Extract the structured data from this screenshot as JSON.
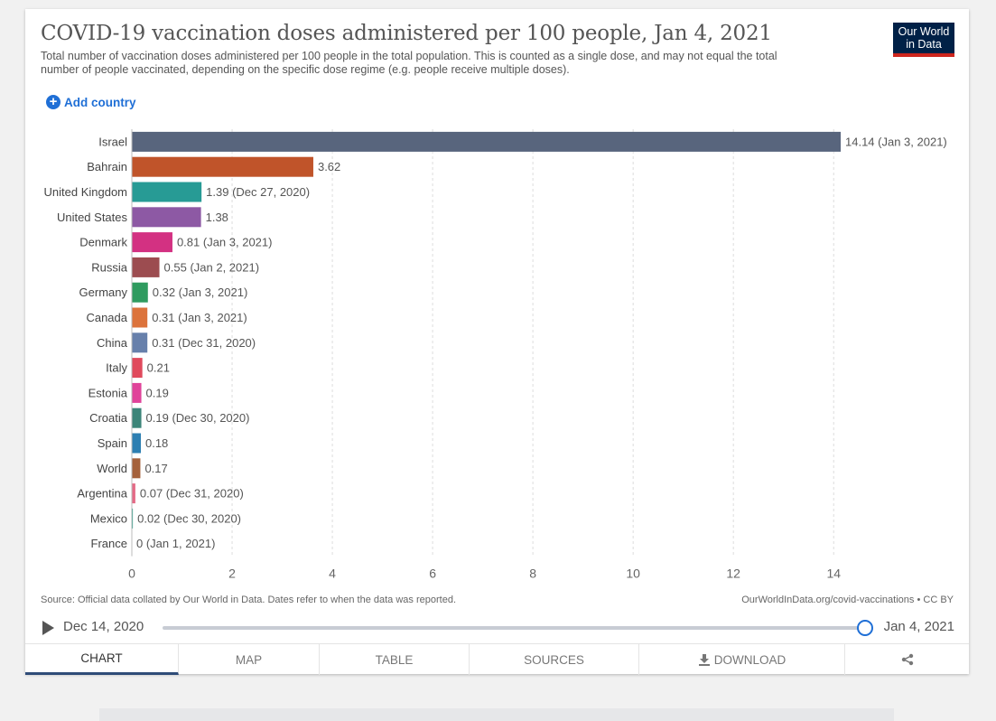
{
  "header": {
    "title": "COVID-19 vaccination doses administered per 100 people, Jan 4, 2021",
    "subtitle": "Total number of vaccination doses administered per 100 people in the total population. This is counted as a single dose, and may not equal the total number of people vaccinated, depending on the specific dose regime (e.g. people receive multiple doses).",
    "logo_line1": "Our World",
    "logo_line2": "in Data",
    "add_country": "Add country"
  },
  "chart_data": {
    "type": "bar",
    "orientation": "horizontal",
    "title": "COVID-19 vaccination doses administered per 100 people, Jan 4, 2021",
    "xlabel": "",
    "ylabel": "",
    "xlim": [
      0,
      14.14
    ],
    "xticks": [
      0,
      2,
      4,
      6,
      8,
      10,
      12,
      14
    ],
    "grid": true,
    "categories": [
      "Israel",
      "Bahrain",
      "United Kingdom",
      "United States",
      "Denmark",
      "Russia",
      "Germany",
      "Canada",
      "China",
      "Italy",
      "Estonia",
      "Croatia",
      "Spain",
      "World",
      "Argentina",
      "Mexico",
      "France"
    ],
    "values": [
      14.14,
      3.62,
      1.39,
      1.38,
      0.81,
      0.55,
      0.32,
      0.31,
      0.31,
      0.21,
      0.19,
      0.19,
      0.18,
      0.17,
      0.07,
      0.02,
      0
    ],
    "labels": [
      "14.14 (Jan 3, 2021)",
      "3.62",
      "1.39 (Dec 27, 2020)",
      "1.38",
      "0.81 (Jan 3, 2021)",
      "0.55 (Jan 2, 2021)",
      "0.32 (Jan 3, 2021)",
      "0.31 (Jan 3, 2021)",
      "0.31 (Dec 31, 2020)",
      "0.21",
      "0.19",
      "0.19 (Dec 30, 2020)",
      "0.18",
      "0.17",
      "0.07 (Dec 31, 2020)",
      "0.02 (Dec 30, 2020)",
      "0 (Jan 1, 2021)"
    ],
    "colors": [
      "#58657d",
      "#c0542a",
      "#279b95",
      "#8d59a4",
      "#d33182",
      "#9c4c50",
      "#2f9b5f",
      "#dc733c",
      "#6780ab",
      "#e04a5c",
      "#e0439a",
      "#3c8579",
      "#2d7fb2",
      "#a5613c",
      "#e46a86",
      "#24a18b",
      "#3d66a8"
    ]
  },
  "footer": {
    "source": "Source: Official data collated by Our World in Data. Dates refer to when the data was reported.",
    "credit": "OurWorldInData.org/covid-vaccinations • CC BY"
  },
  "timeline": {
    "start": "Dec 14, 2020",
    "end": "Jan 4, 2021"
  },
  "tabs": {
    "chart": "CHART",
    "map": "MAP",
    "table": "TABLE",
    "sources": "SOURCES",
    "download": "DOWNLOAD"
  }
}
